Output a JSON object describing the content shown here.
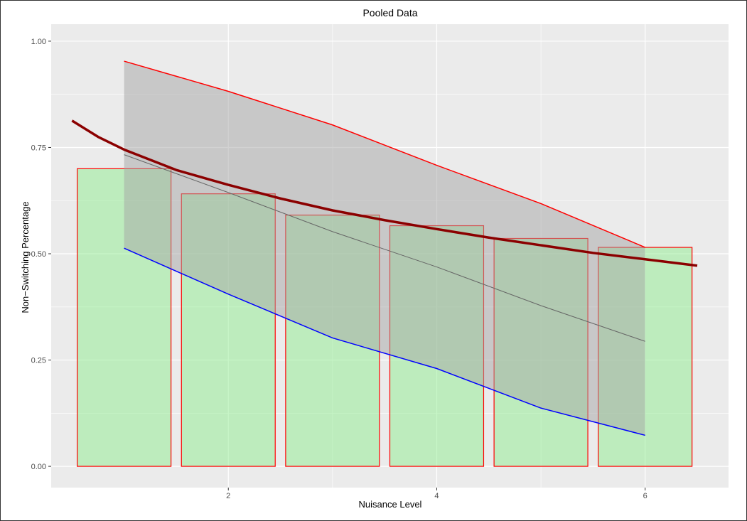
{
  "chart_data": {
    "type": "bar",
    "title": "Pooled Data",
    "xlabel": "Nuisance Level",
    "ylabel": "Non−Switching Percentage",
    "xlim": [
      0.3,
      6.8
    ],
    "ylim": [
      -0.05,
      1.04
    ],
    "x_ticks": [
      2,
      4,
      6
    ],
    "x_tick_labels": [
      "2",
      "4",
      "6"
    ],
    "y_ticks": [
      0,
      0.25,
      0.5,
      0.75,
      1.0
    ],
    "y_tick_labels": [
      "0.00",
      "0.25",
      "0.50",
      "0.75",
      "1.00"
    ],
    "grid": true,
    "categories": [
      1,
      2,
      3,
      4,
      5,
      6
    ],
    "values": [
      0.7,
      0.641,
      0.591,
      0.566,
      0.536,
      0.515
    ],
    "bar_width": 0.9,
    "band": {
      "x": [
        1,
        2,
        3,
        4,
        5,
        6
      ],
      "upper": [
        0.953,
        0.882,
        0.803,
        0.708,
        0.618,
        0.515
      ],
      "lower": [
        0.513,
        0.405,
        0.302,
        0.23,
        0.137,
        0.073
      ],
      "mid": [
        0.733,
        0.644,
        0.552,
        0.469,
        0.378,
        0.294
      ]
    },
    "curve": {
      "x": [
        0.5,
        0.75,
        1.0,
        1.5,
        2.0,
        2.5,
        3.0,
        3.5,
        4.0,
        4.5,
        5.0,
        5.5,
        6.0,
        6.5
      ],
      "y": [
        0.813,
        0.775,
        0.745,
        0.697,
        0.662,
        0.63,
        0.602,
        0.579,
        0.558,
        0.538,
        0.52,
        0.502,
        0.487,
        0.472
      ]
    },
    "colors": {
      "panel": "#ebebeb",
      "grid_major": "#ffffff",
      "bar_fill": "#90ee90",
      "bar_stroke": "#ff0000",
      "band_fill": "#a6a6a6",
      "upper_line": "#ff0000",
      "lower_line": "#0000ff",
      "mid_line": "#666666",
      "curve": "#8b0000"
    }
  }
}
